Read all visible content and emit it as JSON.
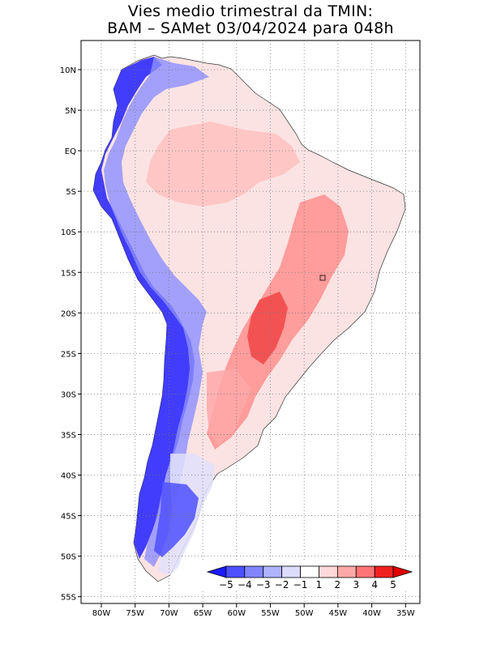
{
  "title": {
    "line1": "Vies medio trimestral da TMIN:",
    "line2": "BAM – SAMet 03/04/2024  para 048h"
  },
  "map": {
    "lon_ticks": [
      "80W",
      "75W",
      "70W",
      "65W",
      "60W",
      "55W",
      "50W",
      "45W",
      "40W",
      "35W"
    ],
    "lat_ticks": [
      "10N",
      "5N",
      "EQ",
      "5S",
      "10S",
      "15S",
      "20S",
      "25S",
      "30S",
      "35S",
      "40S",
      "45S",
      "50S",
      "55S"
    ],
    "grid": "dotted",
    "colors": {
      "land_light_blue": "#d8daf8",
      "ocean": "#ffffff"
    }
  },
  "colorbar": {
    "labels": [
      "−5",
      "−4",
      "−3",
      "−2",
      "−1",
      "1",
      "2",
      "3",
      "4",
      "5"
    ],
    "colors": [
      "#1a1aff",
      "#4d50ff",
      "#8285ff",
      "#b0b3ff",
      "#dcdcfc",
      "#ffffff",
      "#ffd9d9",
      "#ffa8a8",
      "#ff7575",
      "#f02020",
      "#e00000"
    ],
    "placement": "bottom-right"
  }
}
